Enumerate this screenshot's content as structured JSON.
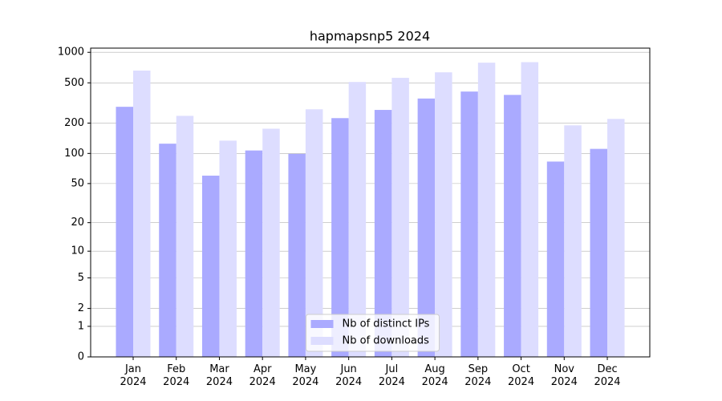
{
  "chart_data": {
    "type": "bar",
    "title": "hapmapsnp5 2024",
    "categories": [
      "Jan\n2024",
      "Feb\n2024",
      "Mar\n2024",
      "Apr\n2024",
      "May\n2024",
      "Jun\n2024",
      "Jul\n2024",
      "Aug\n2024",
      "Sep\n2024",
      "Oct\n2024",
      "Nov\n2024",
      "Dec\n2024"
    ],
    "series": [
      {
        "name": "Nb of distinct IPs",
        "color": "#aaaaff",
        "values": [
          290,
          125,
          60,
          107,
          99,
          224,
          270,
          350,
          410,
          380,
          83,
          111
        ]
      },
      {
        "name": "Nb of downloads",
        "color": "#ddddff",
        "values": [
          660,
          236,
          134,
          176,
          274,
          510,
          560,
          635,
          790,
          800,
          190,
          220
        ]
      }
    ],
    "yscale": "log1p",
    "ylim": [
      0,
      1100
    ],
    "yticks": [
      0,
      1,
      2,
      5,
      10,
      20,
      50,
      100,
      200,
      500,
      1000
    ],
    "grid": true,
    "legend": "lower center"
  }
}
